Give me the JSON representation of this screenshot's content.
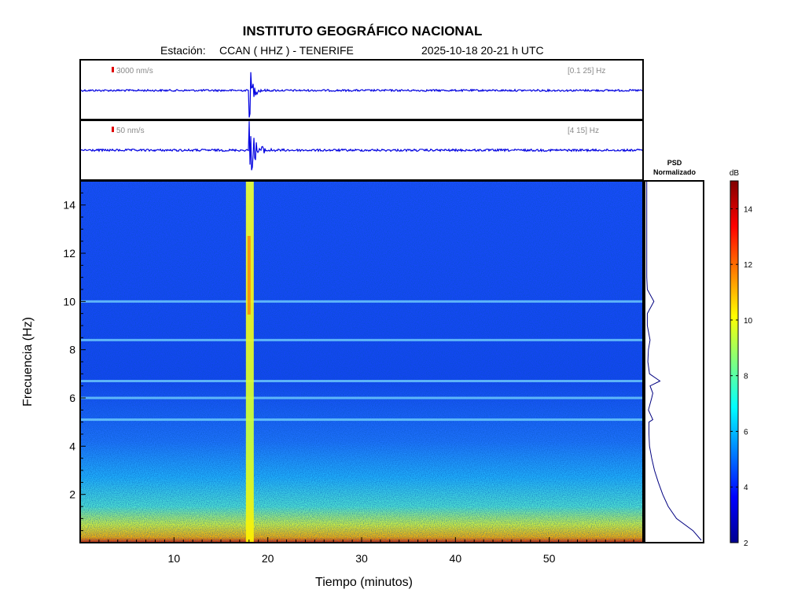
{
  "header": {
    "title": "INSTITUTO GEOGRÁFICO NACIONAL",
    "station_label": "Estación:",
    "station": "CCAN ( HHZ ) - TENERIFE",
    "datetime": "2025-10-18  20-21 h UTC"
  },
  "traces": [
    {
      "scale_label": "3000 nm/s",
      "band_label": "[0.1 25] Hz"
    },
    {
      "scale_label": "50 nm/s",
      "band_label": "[4 15] Hz"
    }
  ],
  "psd": {
    "title_line1": "PSD",
    "title_line2": "Normalizado"
  },
  "colorbar": {
    "unit": "dB",
    "ticks": [
      "2",
      "4",
      "6",
      "8",
      "10",
      "12",
      "14"
    ],
    "range": [
      2,
      15
    ],
    "colormap": "jet"
  },
  "chart_data": {
    "type": "heatmap",
    "xlabel": "Tiempo (minutos)",
    "ylabel": "Frecuencia (Hz)",
    "xlim": [
      0,
      60
    ],
    "ylim": [
      0,
      15
    ],
    "x_ticks": [
      "10",
      "20",
      "30",
      "40",
      "50"
    ],
    "y_ticks": [
      "2",
      "4",
      "6",
      "8",
      "10",
      "12",
      "14"
    ],
    "event_time_min": 18,
    "harmonic_bands_hz": [
      5.1,
      6.0,
      6.7,
      8.4,
      10.0
    ],
    "psd_profile": {
      "freq": [
        0.1,
        0.5,
        1,
        1.5,
        2,
        2.5,
        3,
        3.5,
        4,
        4.5,
        5,
        5.1,
        5.5,
        6,
        6.2,
        6.5,
        6.7,
        7,
        7.5,
        8,
        8.4,
        9,
        9.5,
        10,
        10.5,
        11,
        12,
        13,
        14,
        15
      ],
      "value": [
        1.0,
        0.85,
        0.55,
        0.4,
        0.3,
        0.22,
        0.15,
        0.1,
        0.06,
        0.05,
        0.05,
        0.12,
        0.04,
        0.1,
        0.12,
        0.07,
        0.25,
        0.06,
        0.03,
        0.04,
        0.07,
        0.02,
        0.02,
        0.14,
        0.02,
        0.01,
        0.01,
        0.01,
        0.01,
        0.01
      ]
    }
  }
}
